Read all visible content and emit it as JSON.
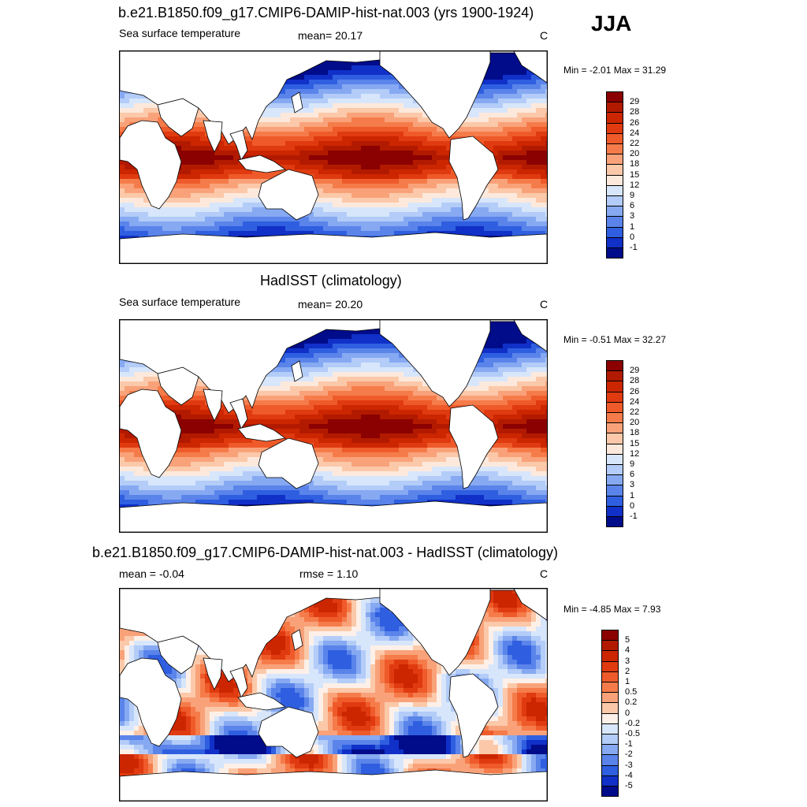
{
  "season": "JJA",
  "panels": [
    {
      "title": "b.e21.B1850.f09_g17.CMIP6-DAMIP-hist-nat.003 (yrs 1900-1924)",
      "left_text": "Sea surface temperature",
      "mid_text": "mean=  20.17",
      "right_text": "C",
      "minmax": "Min =  -2.01 Max =  31.29",
      "kind": "sst",
      "colorbar": {
        "labels": [
          "29",
          "28",
          "26",
          "24",
          "22",
          "20",
          "18",
          "15",
          "12",
          "9",
          "6",
          "3",
          "1",
          "0",
          "-1"
        ],
        "colors": [
          "#8b0000",
          "#b21a00",
          "#cc2600",
          "#e03a10",
          "#ef5a2a",
          "#f57c4a",
          "#f9a27a",
          "#fbc9a9",
          "#fde9dc",
          "#d8e6fb",
          "#b3ccf8",
          "#86a9f2",
          "#5a84ea",
          "#2f5fe0",
          "#1030c8",
          "#000c8a"
        ]
      }
    },
    {
      "title": "HadISST (climatology)",
      "left_text": "Sea surface temperature",
      "mid_text": "mean=  20.20",
      "right_text": "C",
      "minmax": "Min =  -0.51 Max =  32.27",
      "kind": "sst",
      "colorbar": {
        "labels": [
          "29",
          "28",
          "26",
          "24",
          "22",
          "20",
          "18",
          "15",
          "12",
          "9",
          "6",
          "3",
          "1",
          "0",
          "-1"
        ],
        "colors": [
          "#8b0000",
          "#b21a00",
          "#cc2600",
          "#e03a10",
          "#ef5a2a",
          "#f57c4a",
          "#f9a27a",
          "#fbc9a9",
          "#fde9dc",
          "#d8e6fb",
          "#b3ccf8",
          "#86a9f2",
          "#5a84ea",
          "#2f5fe0",
          "#1030c8",
          "#000c8a"
        ]
      }
    },
    {
      "title": "b.e21.B1850.f09_g17.CMIP6-DAMIP-hist-nat.003 - HadISST (climatology)",
      "left_text": "mean =  -0.04",
      "mid_text": "rmse =   1.10",
      "right_text": "C",
      "minmax": "Min =  -4.85 Max =   7.93",
      "kind": "diff",
      "colorbar": {
        "labels": [
          "5",
          "4",
          "3",
          "2",
          "1",
          "0.5",
          "0.2",
          "0",
          "-0.2",
          "-0.5",
          "-1",
          "-2",
          "-3",
          "-4",
          "-5"
        ],
        "colors": [
          "#8b0000",
          "#b21a00",
          "#cc2600",
          "#e03a10",
          "#ef5a2a",
          "#f57c4a",
          "#f9a27a",
          "#fbc9a9",
          "#fdf0e8",
          "#d8e6fb",
          "#b3ccf8",
          "#86a9f2",
          "#5a84ea",
          "#2f5fe0",
          "#1030c8",
          "#000c8a"
        ]
      }
    }
  ]
}
